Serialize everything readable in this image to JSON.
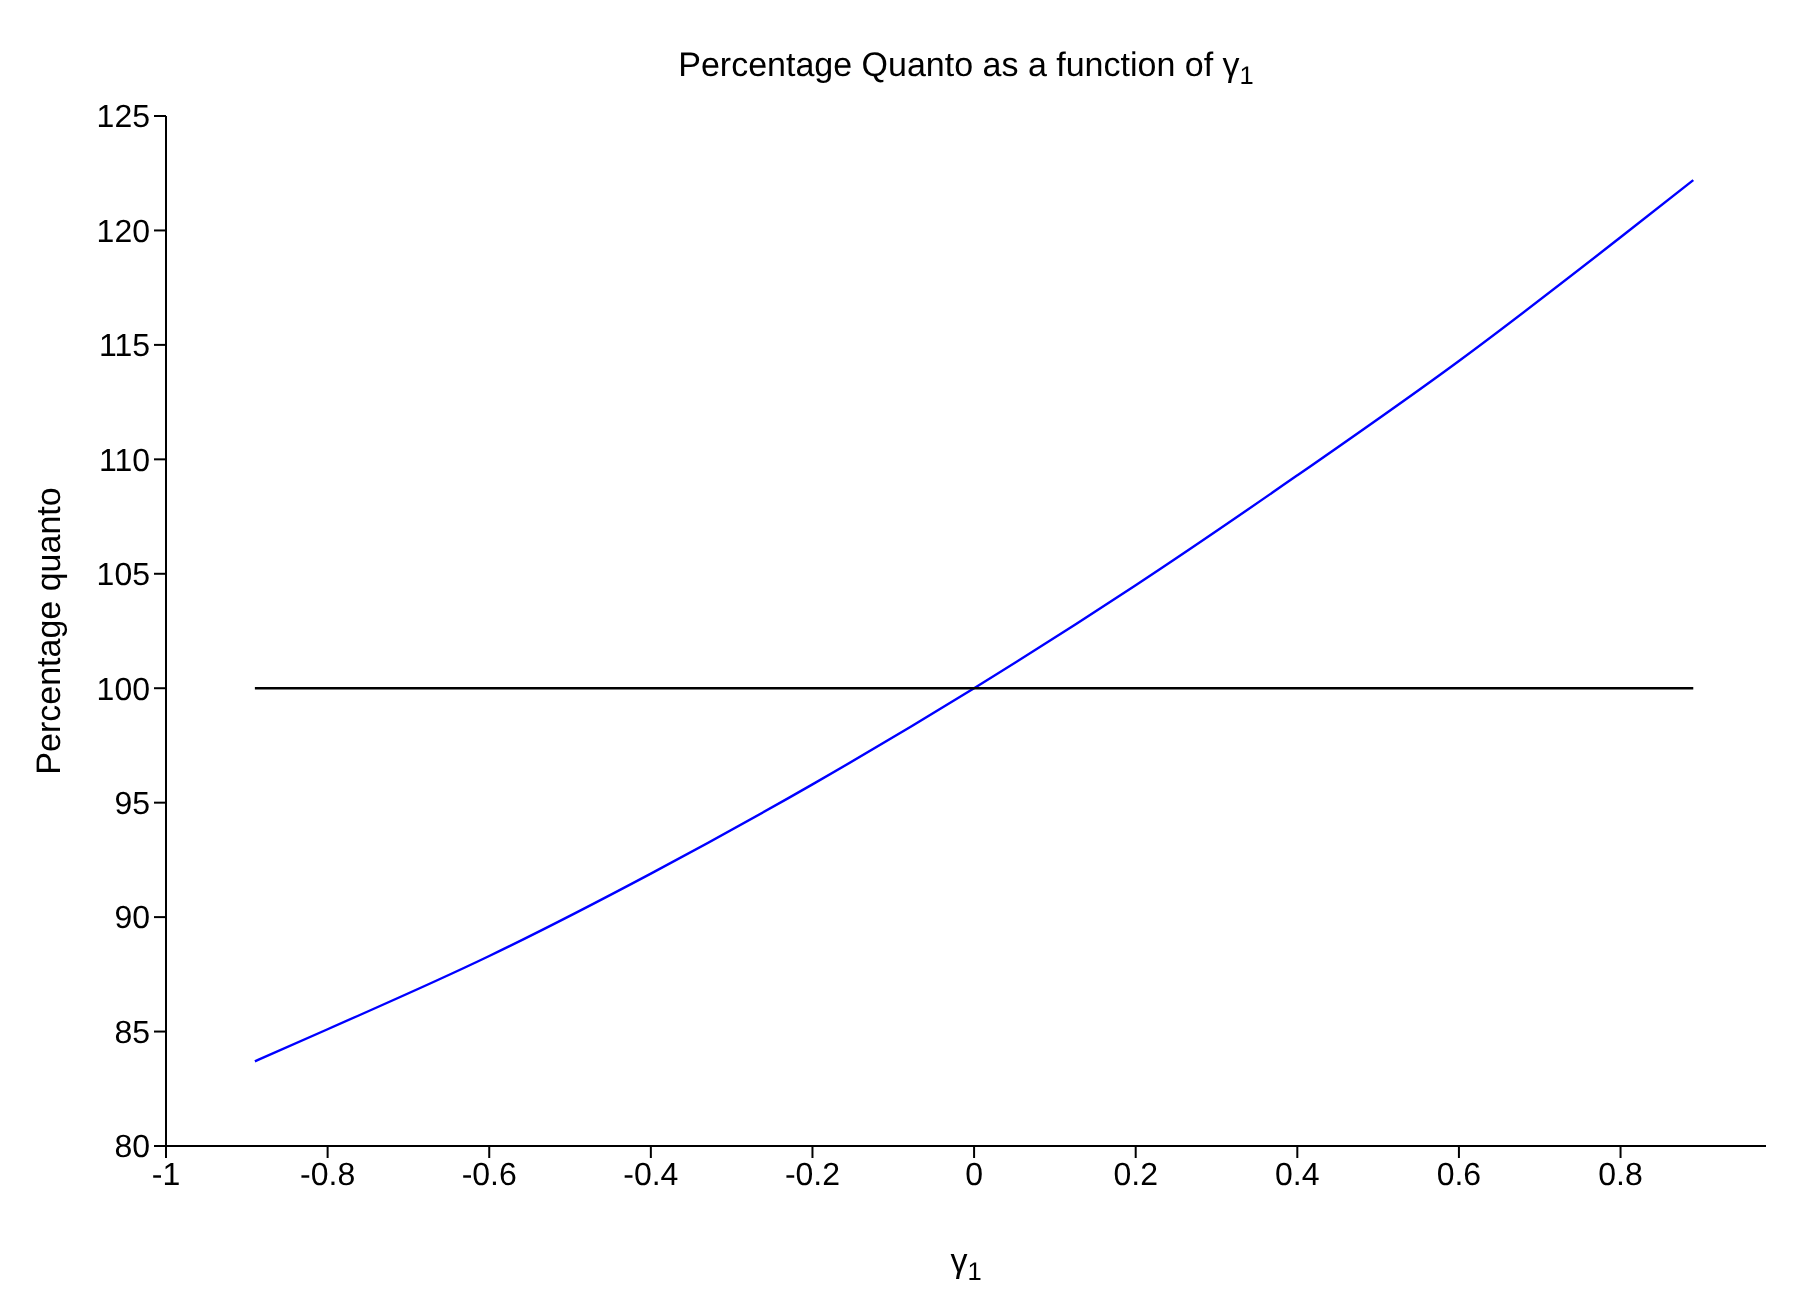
{
  "chart_data": {
    "type": "line",
    "title": "Percentage Quanto as a function of γ$_{1}$",
    "xlabel": "γ$_{1}$",
    "ylabel": "Percentage quanto",
    "series": [
      {
        "color": "#0000ff",
        "x": [
          -0.89,
          -0.8,
          -0.6,
          -0.4,
          -0.2,
          0,
          0.2,
          0.4,
          0.6,
          0.8,
          0.89
        ],
        "values": [
          83.7,
          85.1,
          88.3,
          91.9,
          95.8,
          100,
          104.5,
          109.3,
          114.3,
          119.7,
          122.2
        ]
      },
      {
        "color": "#000000",
        "x": [
          -0.89,
          0.89
        ],
        "values": [
          100,
          100
        ]
      }
    ],
    "xlim": [
      -1,
      0.98
    ],
    "xticks": [
      -1,
      -0.8,
      -0.6,
      -0.4,
      -0.2,
      0,
      0.2,
      0.4,
      0.6,
      0.8
    ],
    "ylim": [
      80,
      125
    ],
    "yticks": [
      80,
      85,
      90,
      95,
      100,
      105,
      110,
      115,
      120,
      125
    ],
    "marker": "none",
    "line_style": "solid"
  }
}
